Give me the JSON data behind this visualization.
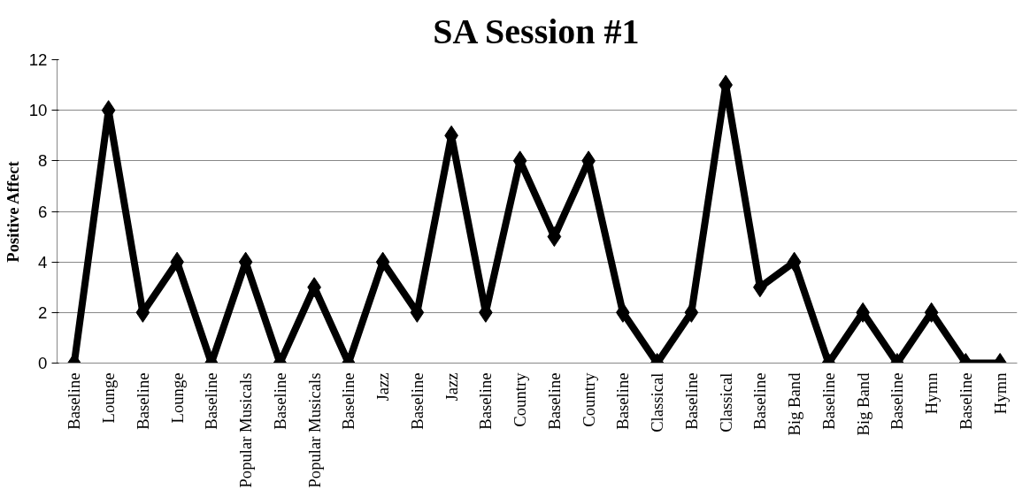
{
  "chart_data": {
    "type": "line",
    "title": "SA Session #1",
    "ylabel": "Positive Affect",
    "categories": [
      "Baseline",
      "Lounge",
      "Baseline",
      "Lounge",
      "Baseline",
      "Popular Musicals",
      "Baseline",
      "Popular Musicals",
      "Baseline",
      "Jazz",
      "Baseline",
      "Jazz",
      "Baseline",
      "Country",
      "Baseline",
      "Country",
      "Baseline",
      "Classical",
      "Baseline",
      "Classical",
      "Baseline",
      "Big Band",
      "Baseline",
      "Big Band",
      "Baseline",
      "Hymn",
      "Baseline",
      "Hymn"
    ],
    "series": [
      {
        "color": "#000000",
        "values": [
          0,
          10,
          2,
          4,
          0,
          4,
          0,
          3,
          0,
          4,
          2,
          9,
          2,
          8,
          5,
          8,
          2,
          0,
          2,
          11,
          3,
          4,
          0,
          2,
          0,
          2,
          0,
          0
        ]
      }
    ],
    "ylim": [
      0,
      12
    ],
    "yticks": [
      0,
      2,
      4,
      6,
      8,
      10,
      12
    ],
    "grid": "y",
    "marker": "diamond",
    "line_style": "solid"
  }
}
